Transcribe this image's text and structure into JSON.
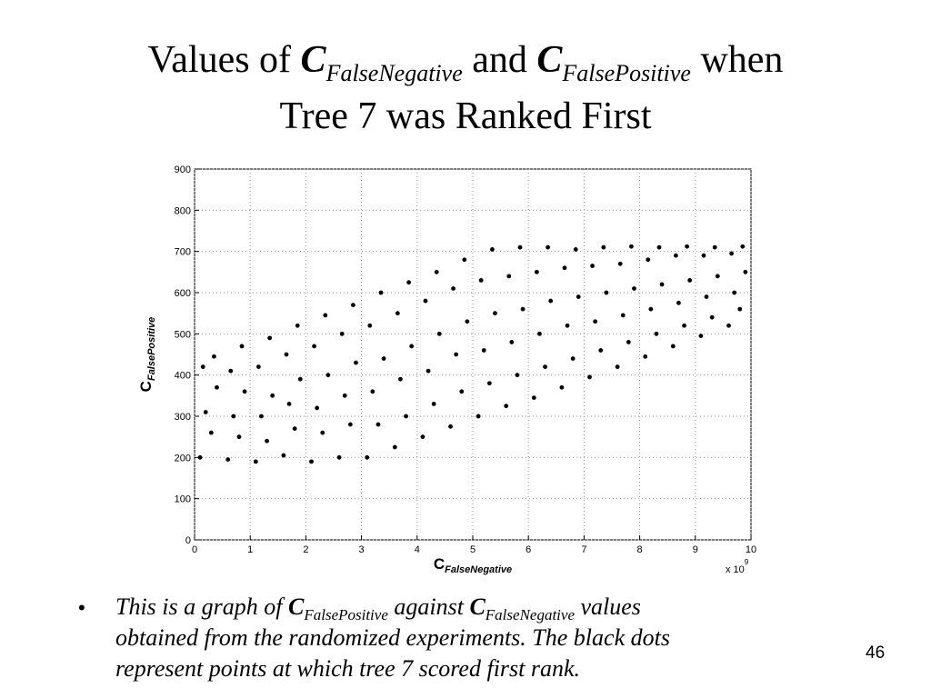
{
  "chart_data": {
    "type": "scatter",
    "title": {
      "line1": [
        "Values of ",
        "C",
        "FalseNegative",
        " and ",
        "C",
        "FalsePositive",
        " when"
      ],
      "line2": "Tree 7 was Ranked First"
    },
    "xlabel": {
      "symbol": "C",
      "subscript": "FalseNegative"
    },
    "ylabel": {
      "symbol": "C",
      "subscript": "FalsePositive"
    },
    "x_multiplier": {
      "base": "x 10",
      "exponent": "9"
    },
    "xlim": [
      0,
      10
    ],
    "ylim": [
      0,
      900
    ],
    "xticks": [
      0,
      1,
      2,
      3,
      4,
      5,
      6,
      7,
      8,
      9,
      10
    ],
    "yticks": [
      0,
      100,
      200,
      300,
      400,
      500,
      600,
      700,
      800,
      900
    ],
    "grid": true,
    "color": "#000000",
    "series": [
      {
        "x": [
          0.1,
          0.3,
          0.2,
          0.4,
          0.15,
          0.35,
          0.6,
          0.8,
          0.7,
          0.9,
          0.65,
          0.85,
          1.1,
          1.3,
          1.2,
          1.4,
          1.15,
          1.35,
          1.6,
          1.8,
          1.7,
          1.9,
          1.65,
          1.85,
          2.1,
          2.3,
          2.2,
          2.4,
          2.15,
          2.35,
          2.6,
          2.8,
          2.7,
          2.9,
          2.65,
          2.85,
          3.1,
          3.3,
          3.2,
          3.4,
          3.15,
          3.35,
          3.6,
          3.8,
          3.7,
          3.9,
          3.65,
          3.85,
          4.1,
          4.3,
          4.2,
          4.4,
          4.15,
          4.35,
          4.6,
          4.8,
          4.7,
          4.9,
          4.65,
          4.85,
          5.1,
          5.3,
          5.2,
          5.4,
          5.15,
          5.35,
          5.6,
          5.8,
          5.7,
          5.9,
          5.65,
          5.85,
          6.1,
          6.3,
          6.2,
          6.4,
          6.15,
          6.35,
          6.6,
          6.8,
          6.7,
          6.9,
          6.65,
          6.85,
          7.1,
          7.3,
          7.2,
          7.4,
          7.15,
          7.35,
          7.6,
          7.8,
          7.7,
          7.9,
          7.65,
          7.85,
          8.1,
          8.3,
          8.2,
          8.4,
          8.15,
          8.35,
          8.6,
          8.8,
          8.7,
          8.9,
          8.65,
          8.85,
          9.1,
          9.3,
          9.2,
          9.4,
          9.15,
          9.35,
          9.6,
          9.8,
          9.7,
          9.9,
          9.65,
          9.85
        ],
        "values": [
          200,
          260,
          310,
          370,
          420,
          445,
          195,
          250,
          300,
          360,
          410,
          470,
          190,
          240,
          300,
          350,
          420,
          490,
          205,
          270,
          330,
          390,
          450,
          520,
          190,
          260,
          320,
          400,
          470,
          545,
          200,
          280,
          350,
          430,
          500,
          570,
          200,
          280,
          360,
          440,
          520,
          600,
          225,
          300,
          390,
          470,
          550,
          625,
          250,
          330,
          410,
          500,
          580,
          650,
          275,
          360,
          450,
          530,
          610,
          680,
          300,
          380,
          460,
          550,
          630,
          705,
          325,
          400,
          480,
          560,
          640,
          710,
          345,
          420,
          500,
          580,
          650,
          710,
          370,
          440,
          520,
          590,
          660,
          705,
          395,
          460,
          530,
          600,
          665,
          710,
          420,
          480,
          545,
          610,
          670,
          712,
          445,
          500,
          560,
          620,
          680,
          710,
          470,
          520,
          575,
          630,
          690,
          712,
          495,
          540,
          590,
          640,
          690,
          710,
          520,
          560,
          600,
          650,
          695,
          712
        ]
      }
    ]
  },
  "bullet": {
    "line1": [
      "This is a graph of ",
      "C",
      "FalsePositive",
      " against ",
      "C",
      "FalseNegative",
      " values"
    ],
    "line2": "obtained from the randomized experiments. The black dots",
    "line3": "represent points at which tree 7 scored first rank."
  },
  "page_number": "46"
}
